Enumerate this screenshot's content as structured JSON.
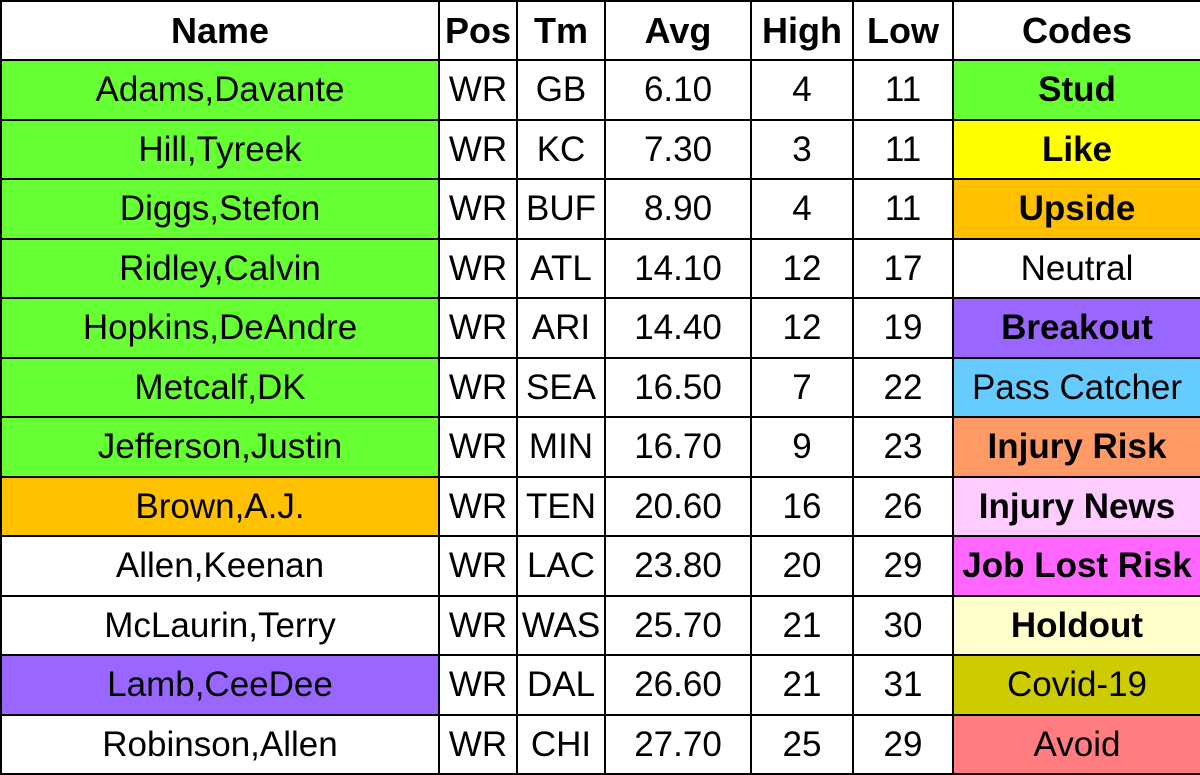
{
  "headers": [
    "Name",
    "Pos",
    "Tm",
    "Avg",
    "High",
    "Low",
    "Codes"
  ],
  "colors": {
    "stud": "#66ff33",
    "like": "#ffff00",
    "upside": "#ffc000",
    "neutral": "#ffffff",
    "breakout": "#9966ff",
    "pass_catcher": "#66ccff",
    "injury_risk": "#ff9966",
    "injury_news": "#ffccff",
    "job_lost_risk": "#ff66ff",
    "holdout": "#ffffcc",
    "covid": "#cccc00",
    "avoid": "#ff7c80"
  },
  "rows": [
    {
      "name": "Adams,Davante",
      "pos": "WR",
      "tm": "GB",
      "avg": "6.10",
      "high": "4",
      "low": "11",
      "name_color": "#66ff33",
      "code": "Stud",
      "code_color": "#66ff33",
      "code_bold": true
    },
    {
      "name": "Hill,Tyreek",
      "pos": "WR",
      "tm": "KC",
      "avg": "7.30",
      "high": "3",
      "low": "11",
      "name_color": "#66ff33",
      "code": "Like",
      "code_color": "#ffff00",
      "code_bold": true
    },
    {
      "name": "Diggs,Stefon",
      "pos": "WR",
      "tm": "BUF",
      "avg": "8.90",
      "high": "4",
      "low": "11",
      "name_color": "#66ff33",
      "code": "Upside",
      "code_color": "#ffc000",
      "code_bold": true
    },
    {
      "name": "Ridley,Calvin",
      "pos": "WR",
      "tm": "ATL",
      "avg": "14.10",
      "high": "12",
      "low": "17",
      "name_color": "#66ff33",
      "code": "Neutral",
      "code_color": "#ffffff",
      "code_bold": false
    },
    {
      "name": "Hopkins,DeAndre",
      "pos": "WR",
      "tm": "ARI",
      "avg": "14.40",
      "high": "12",
      "low": "19",
      "name_color": "#66ff33",
      "code": "Breakout",
      "code_color": "#9966ff",
      "code_bold": true
    },
    {
      "name": "Metcalf,DK",
      "pos": "WR",
      "tm": "SEA",
      "avg": "16.50",
      "high": "7",
      "low": "22",
      "name_color": "#66ff33",
      "code": "Pass Catcher",
      "code_color": "#66ccff",
      "code_bold": false
    },
    {
      "name": "Jefferson,Justin",
      "pos": "WR",
      "tm": "MIN",
      "avg": "16.70",
      "high": "9",
      "low": "23",
      "name_color": "#66ff33",
      "code": "Injury Risk",
      "code_color": "#ff9966",
      "code_bold": true
    },
    {
      "name": "Brown,A.J.",
      "pos": "WR",
      "tm": "TEN",
      "avg": "20.60",
      "high": "16",
      "low": "26",
      "name_color": "#ffc000",
      "code": "Injury News",
      "code_color": "#ffccff",
      "code_bold": true
    },
    {
      "name": "Allen,Keenan",
      "pos": "WR",
      "tm": "LAC",
      "avg": "23.80",
      "high": "20",
      "low": "29",
      "name_color": "#ffffff",
      "code": "Job Lost Risk",
      "code_color": "#ff66ff",
      "code_bold": true
    },
    {
      "name": "McLaurin,Terry",
      "pos": "WR",
      "tm": "WAS",
      "avg": "25.70",
      "high": "21",
      "low": "30",
      "name_color": "#ffffff",
      "code": "Holdout",
      "code_color": "#ffffcc",
      "code_bold": true
    },
    {
      "name": "Lamb,CeeDee",
      "pos": "WR",
      "tm": "DAL",
      "avg": "26.60",
      "high": "21",
      "low": "31",
      "name_color": "#9966ff",
      "code": "Covid-19",
      "code_color": "#cccc00",
      "code_bold": false
    },
    {
      "name": "Robinson,Allen",
      "pos": "WR",
      "tm": "CHI",
      "avg": "27.70",
      "high": "25",
      "low": "29",
      "name_color": "#ffffff",
      "code": "Avoid",
      "code_color": "#ff7c80",
      "code_bold": false
    }
  ]
}
